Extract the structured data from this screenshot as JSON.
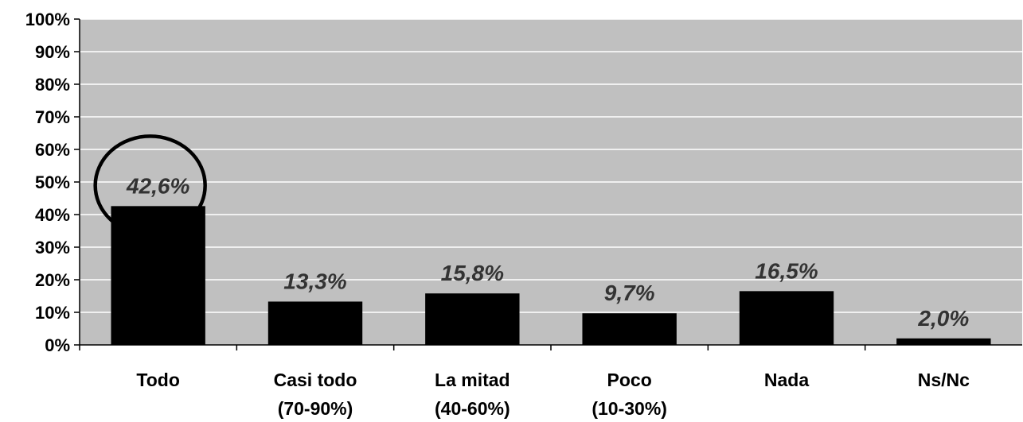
{
  "chart_data": {
    "type": "bar",
    "categories": [
      [
        "Todo"
      ],
      [
        "Casi todo",
        "(70-90%)"
      ],
      [
        "La mitad",
        "(40-60%)"
      ],
      [
        "Poco",
        "(10-30%)"
      ],
      [
        "Nada"
      ],
      [
        "Ns/Nc"
      ]
    ],
    "values": [
      42.6,
      13.3,
      15.8,
      9.7,
      16.5,
      2.0
    ],
    "data_labels": [
      "42,6%",
      "13,3%",
      "15,8%",
      "9,7%",
      "16,5%",
      "2,0%"
    ],
    "y_ticks": [
      "0%",
      "10%",
      "20%",
      "30%",
      "40%",
      "50%",
      "60%",
      "70%",
      "80%",
      "90%",
      "100%"
    ],
    "ylim": [
      0,
      100
    ],
    "grid": true,
    "highlighted_category": "Todo",
    "colors": {
      "plot_background": "#c0c0c0",
      "bar": "#000000",
      "gridline": "#ffffff",
      "data_label": "#333333",
      "highlight_circle": "#000000"
    }
  }
}
